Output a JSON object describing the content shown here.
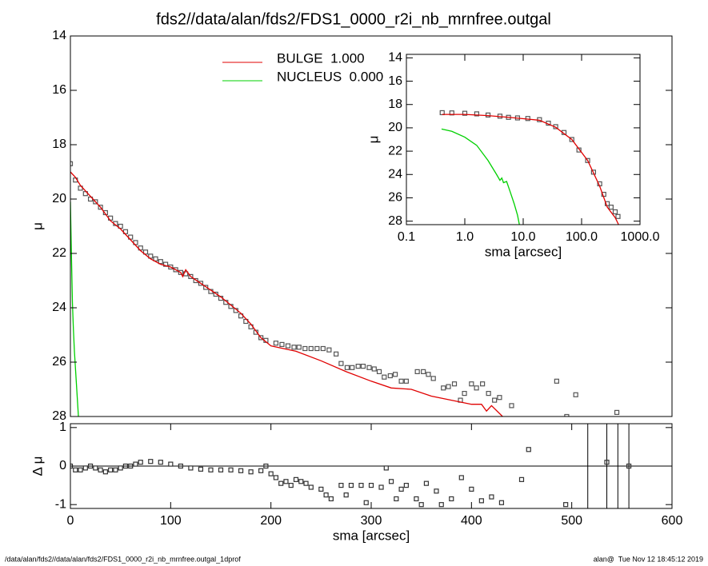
{
  "title": "fds2//data/alan/fds2/FDS1_0000_r2i_nb_mrnfree.outgal",
  "footer_left": "/data/alan/fds2//data/alan/fds2/FDS1_0000_r2i_nb_mrnfree.outgal_1dprof",
  "footer_right": "alan@  Tue Nov 12 18:45:12 2019",
  "chart_data": [
    {
      "type": "line",
      "ylabel": "μ",
      "xlim": [
        0,
        600
      ],
      "ylim": [
        28,
        14
      ],
      "yticks": [
        14,
        16,
        18,
        20,
        22,
        24,
        26,
        28
      ],
      "legend": "top-center",
      "series": [
        {
          "color": "#555555",
          "marker": "square",
          "x": [
            0,
            5,
            10,
            15,
            20,
            25,
            30,
            35,
            40,
            45,
            50,
            55,
            60,
            65,
            70,
            75,
            80,
            85,
            90,
            95,
            100,
            105,
            110,
            115,
            120,
            125,
            130,
            135,
            140,
            145,
            150,
            155,
            160,
            165,
            170,
            175,
            180,
            185,
            190,
            195,
            205,
            211,
            217,
            223,
            228,
            234,
            240,
            246,
            252,
            258,
            265,
            270,
            276,
            281,
            287,
            292,
            298,
            303,
            308,
            313,
            319,
            324,
            330,
            335,
            346,
            352,
            357,
            362,
            372,
            377,
            383,
            389,
            393,
            400,
            405,
            411,
            417,
            423,
            428,
            440,
            485,
            495,
            504,
            545
          ],
          "values": [
            18.7,
            19.3,
            19.6,
            19.8,
            20.0,
            20.1,
            20.3,
            20.5,
            20.7,
            20.9,
            21.0,
            21.2,
            21.4,
            21.6,
            21.8,
            21.95,
            22.1,
            22.2,
            22.3,
            22.4,
            22.5,
            22.6,
            22.7,
            22.75,
            22.85,
            23.0,
            23.1,
            23.25,
            23.4,
            23.5,
            23.65,
            23.8,
            23.95,
            24.1,
            24.3,
            24.5,
            24.7,
            24.9,
            25.1,
            25.2,
            25.3,
            25.35,
            25.4,
            25.45,
            25.45,
            25.5,
            25.5,
            25.5,
            25.5,
            25.55,
            25.7,
            26.05,
            26.2,
            26.2,
            26.15,
            26.15,
            26.2,
            26.25,
            26.35,
            26.55,
            26.5,
            26.45,
            26.7,
            26.7,
            26.35,
            26.35,
            26.45,
            26.6,
            26.95,
            26.9,
            26.8,
            27.4,
            27.15,
            26.8,
            26.95,
            26.8,
            27.15,
            27.4,
            27.3,
            27.6,
            26.7,
            28.0,
            27.2,
            27.85
          ]
        },
        {
          "name": "BULGE  1.000",
          "color": "#e00000",
          "x": [
            0,
            5,
            10,
            20,
            30,
            40,
            50,
            60,
            70,
            80,
            90,
            100,
            110,
            112,
            115,
            120,
            130,
            140,
            150,
            160,
            170,
            180,
            190,
            200,
            225,
            250,
            275,
            300,
            320,
            340,
            360,
            380,
            400,
            410,
            415,
            420,
            431
          ],
          "values": [
            19.0,
            19.2,
            19.5,
            19.9,
            20.3,
            20.8,
            21.1,
            21.5,
            21.9,
            22.2,
            22.4,
            22.5,
            22.7,
            22.85,
            22.6,
            22.85,
            23.1,
            23.35,
            23.6,
            23.9,
            24.2,
            24.6,
            25.1,
            25.4,
            25.6,
            25.95,
            26.35,
            26.7,
            26.95,
            27.0,
            27.25,
            27.4,
            27.55,
            27.55,
            27.8,
            27.6,
            28.0
          ]
        },
        {
          "name": "NUCLEUS  0.000",
          "color": "#00d000",
          "x": [
            0,
            1,
            2,
            3,
            4,
            6,
            8
          ],
          "values": [
            20.1,
            22.0,
            23.8,
            24.8,
            25.6,
            26.8,
            28.0
          ]
        }
      ]
    },
    {
      "type": "scatter",
      "xlabel": "sma [arcsec]",
      "ylabel": "Δ μ",
      "xlim": [
        0,
        600
      ],
      "ylim": [
        -1.1,
        1.1
      ],
      "xticks": [
        0,
        100,
        200,
        300,
        400,
        500,
        600
      ],
      "yticks": [
        -1,
        0,
        1
      ],
      "vlines": [
        516,
        535,
        546,
        557
      ],
      "series": [
        {
          "color": "#333333",
          "marker": "square",
          "x": [
            0,
            5,
            10,
            15,
            20,
            25,
            30,
            35,
            40,
            45,
            50,
            55,
            60,
            65,
            70,
            80,
            90,
            100,
            110,
            120,
            130,
            140,
            150,
            160,
            170,
            180,
            190,
            195,
            200,
            205,
            210,
            215,
            220,
            225,
            230,
            235,
            240,
            250,
            255,
            260,
            270,
            275,
            280,
            290,
            295,
            300,
            310,
            315,
            320,
            325,
            330,
            335,
            345,
            350,
            355,
            365,
            370,
            380,
            390,
            400,
            410,
            420,
            430,
            450,
            457,
            494,
            535,
            557
          ],
          "values": [
            0,
            -0.1,
            -0.1,
            -0.05,
            0,
            -0.05,
            -0.1,
            -0.15,
            -0.1,
            -0.1,
            -0.05,
            0,
            0,
            0.05,
            0.1,
            0.12,
            0.1,
            0.05,
            0,
            -0.05,
            -0.08,
            -0.1,
            -0.1,
            -0.1,
            -0.12,
            -0.15,
            -0.12,
            0,
            -0.2,
            -0.3,
            -0.45,
            -0.4,
            -0.5,
            -0.35,
            -0.4,
            -0.45,
            -0.55,
            -0.6,
            -0.75,
            -0.85,
            -0.5,
            -0.75,
            -0.5,
            -0.5,
            -0.95,
            -0.5,
            -0.55,
            -0.05,
            -0.4,
            -0.85,
            -0.6,
            -0.5,
            -0.85,
            -1.0,
            -0.45,
            -0.65,
            -1.0,
            -0.85,
            -0.3,
            -0.6,
            -0.9,
            -0.8,
            -0.95,
            -0.35,
            0.43,
            -1.0,
            0.1,
            0
          ]
        }
      ]
    },
    {
      "type": "line",
      "xlabel": "sma [arcsec]",
      "ylabel": "μ",
      "xscale": "log",
      "xlim": [
        0.1,
        1000
      ],
      "ylim": [
        28.3,
        13.7
      ],
      "xticks": [
        0.1,
        {
          "value": 1,
          "label": "1.0"
        },
        {
          "value": 10,
          "label": "10.0"
        },
        {
          "value": 100,
          "label": "100.0"
        },
        {
          "value": 1000,
          "label": "1000.0"
        }
      ],
      "yticks": [
        14,
        16,
        18,
        20,
        22,
        24,
        26,
        28
      ],
      "series": [
        {
          "color": "#555555",
          "marker": "square",
          "x": [
            0.41,
            0.6,
            1,
            1.6,
            2.5,
            4,
            5.6,
            8,
            12,
            19,
            27,
            36,
            50,
            68,
            90,
            127,
            160,
            204,
            240,
            275,
            320,
            376,
            420
          ],
          "values": [
            18.7,
            18.72,
            18.75,
            18.8,
            18.9,
            19.0,
            19.1,
            19.15,
            19.2,
            19.3,
            19.6,
            19.9,
            20.4,
            21.0,
            21.9,
            22.8,
            23.8,
            24.8,
            25.7,
            26.5,
            26.8,
            27.2,
            27.6
          ]
        },
        {
          "color": "#e00000",
          "x": [
            0.41,
            1,
            2.5,
            5.6,
            12,
            19,
            36,
            68,
            127,
            204,
            275,
            376,
            430
          ],
          "values": [
            18.85,
            18.85,
            18.95,
            19.1,
            19.25,
            19.35,
            19.95,
            21.0,
            22.8,
            25.0,
            26.8,
            27.7,
            28.3
          ]
        },
        {
          "color": "#00d000",
          "x": [
            0.4,
            0.6,
            1,
            1.6,
            2.5,
            3.5,
            4,
            4.3,
            4.6,
            5.2,
            6,
            7,
            8,
            8.6
          ],
          "values": [
            20.1,
            20.3,
            20.8,
            21.5,
            22.8,
            24.0,
            24.5,
            24.3,
            24.7,
            24.6,
            25.5,
            26.5,
            27.5,
            28.3
          ]
        }
      ]
    }
  ]
}
